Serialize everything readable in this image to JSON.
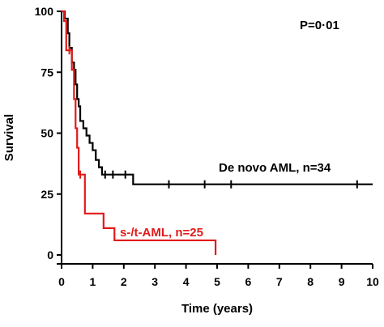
{
  "chart_data": {
    "type": "line",
    "title": "",
    "xlabel": "Time (years)",
    "ylabel": "Survival",
    "xlim": [
      0,
      10
    ],
    "ylim": [
      0,
      100
    ],
    "x_ticks": [
      0,
      1,
      2,
      3,
      4,
      5,
      6,
      7,
      8,
      9,
      10
    ],
    "y_ticks": [
      0,
      25,
      50,
      75,
      100
    ],
    "grid": false,
    "legend": "none",
    "annotation_text": "P=0·01",
    "series": [
      {
        "name": "De novo AML, n=34",
        "color": "#000000",
        "steps": [
          [
            0,
            100
          ],
          [
            0.1,
            97
          ],
          [
            0.2,
            91
          ],
          [
            0.25,
            85
          ],
          [
            0.33,
            79
          ],
          [
            0.4,
            76
          ],
          [
            0.45,
            70
          ],
          [
            0.5,
            64
          ],
          [
            0.55,
            61
          ],
          [
            0.6,
            55
          ],
          [
            0.7,
            52
          ],
          [
            0.8,
            49
          ],
          [
            0.9,
            46
          ],
          [
            1.0,
            43
          ],
          [
            1.1,
            39
          ],
          [
            1.2,
            36
          ],
          [
            1.3,
            33
          ],
          [
            2.3,
            29
          ],
          [
            10.0,
            29
          ]
        ],
        "censor_x": [
          1.4,
          1.65,
          2.05,
          3.45,
          4.6,
          5.45,
          9.5
        ]
      },
      {
        "name": "s-/t-AML, n=25",
        "color": "#e21a1a",
        "steps": [
          [
            0,
            100
          ],
          [
            0.08,
            96
          ],
          [
            0.15,
            84
          ],
          [
            0.33,
            76
          ],
          [
            0.4,
            64
          ],
          [
            0.45,
            52
          ],
          [
            0.5,
            44
          ],
          [
            0.55,
            33
          ],
          [
            0.75,
            17
          ],
          [
            1.35,
            11
          ],
          [
            1.7,
            6
          ],
          [
            4.95,
            0
          ]
        ],
        "censor_x": [
          0.25,
          0.6
        ]
      }
    ]
  }
}
